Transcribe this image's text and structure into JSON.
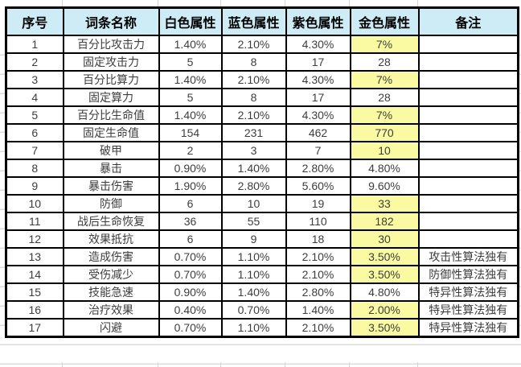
{
  "chart_data": {
    "type": "table",
    "title": "",
    "columns": [
      "序号",
      "词条名称",
      "白色属性",
      "蓝色属性",
      "紫色属性",
      "金色属性",
      "备注"
    ],
    "rows": [
      {
        "num": "1",
        "name": "百分比攻击力",
        "white": "1.40%",
        "blue": "2.10%",
        "purple": "4.30%",
        "gold": "7%",
        "gold_highlight": true,
        "note": ""
      },
      {
        "num": "2",
        "name": "固定攻击力",
        "white": "5",
        "blue": "8",
        "purple": "17",
        "gold": "28",
        "gold_highlight": false,
        "note": ""
      },
      {
        "num": "3",
        "name": "百分比算力",
        "white": "1.40%",
        "blue": "2.10%",
        "purple": "4.30%",
        "gold": "7%",
        "gold_highlight": true,
        "note": ""
      },
      {
        "num": "4",
        "name": "固定算力",
        "white": "5",
        "blue": "8",
        "purple": "17",
        "gold": "28",
        "gold_highlight": false,
        "note": ""
      },
      {
        "num": "5",
        "name": "百分比生命值",
        "white": "1.40%",
        "blue": "2.10%",
        "purple": "4.30%",
        "gold": "7%",
        "gold_highlight": true,
        "note": ""
      },
      {
        "num": "6",
        "name": "固定生命值",
        "white": "154",
        "blue": "231",
        "purple": "462",
        "gold": "770",
        "gold_highlight": true,
        "note": ""
      },
      {
        "num": "7",
        "name": "破甲",
        "white": "2",
        "blue": "3",
        "purple": "7",
        "gold": "10",
        "gold_highlight": true,
        "note": ""
      },
      {
        "num": "8",
        "name": "暴击",
        "white": "0.90%",
        "blue": "1.40%",
        "purple": "2.80%",
        "gold": "4.80%",
        "gold_highlight": false,
        "note": ""
      },
      {
        "num": "9",
        "name": "暴击伤害",
        "white": "1.90%",
        "blue": "2.80%",
        "purple": "5.60%",
        "gold": "9.60%",
        "gold_highlight": false,
        "note": ""
      },
      {
        "num": "10",
        "name": "防御",
        "white": "6",
        "blue": "10",
        "purple": "19",
        "gold": "33",
        "gold_highlight": true,
        "note": ""
      },
      {
        "num": "11",
        "name": "战后生命恢复",
        "white": "36",
        "blue": "55",
        "purple": "110",
        "gold": "182",
        "gold_highlight": true,
        "note": ""
      },
      {
        "num": "12",
        "name": "效果抵抗",
        "white": "6",
        "blue": "9",
        "purple": "18",
        "gold": "30",
        "gold_highlight": true,
        "note": ""
      },
      {
        "num": "13",
        "name": "造成伤害",
        "white": "0.70%",
        "blue": "1.10%",
        "purple": "2.10%",
        "gold": "3.50%",
        "gold_highlight": true,
        "note": "攻击性算法独有"
      },
      {
        "num": "14",
        "name": "受伤减少",
        "white": "0.70%",
        "blue": "1.10%",
        "purple": "2.10%",
        "gold": "3.50%",
        "gold_highlight": true,
        "note": "防御性算法独有"
      },
      {
        "num": "15",
        "name": "技能急速",
        "white": "0.90%",
        "blue": "1.40%",
        "purple": "2.80%",
        "gold": "4.80%",
        "gold_highlight": false,
        "note": "特异性算法独有"
      },
      {
        "num": "16",
        "name": "治疗效果",
        "white": "0.40%",
        "blue": "0.70%",
        "purple": "1.40%",
        "gold": "2.00%",
        "gold_highlight": true,
        "note": "特异性算法独有"
      },
      {
        "num": "17",
        "name": "闪避",
        "white": "0.70%",
        "blue": "1.10%",
        "purple": "2.10%",
        "gold": "3.50%",
        "gold_highlight": true,
        "note": "特异性算法独有"
      }
    ],
    "layout_hints": {
      "header_position": "top",
      "grid": "on",
      "highlight_meaning": "yellow background on most 金色属性 cells"
    }
  },
  "colors": {
    "header_bg": "#cdecf5",
    "gold_highlight_bg": "#f9faa2",
    "cell_bg": "#ffffff",
    "border": "#000000",
    "header_text": "#000000",
    "body_text": "#3d3d3d",
    "faint_gridline": "#dcdcdc"
  }
}
